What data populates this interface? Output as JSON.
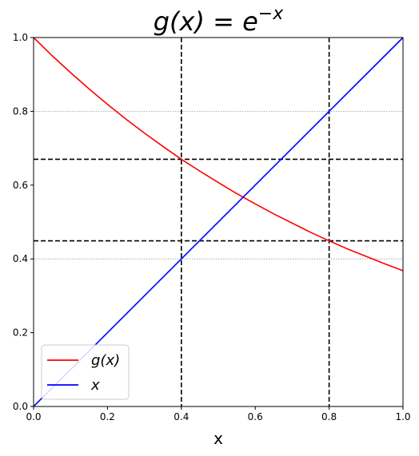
{
  "chart_data": {
    "type": "line",
    "title": {
      "base": "g(x) = e",
      "sup": "−x"
    },
    "xlabel": "x",
    "ylabel": "",
    "xlim": [
      0,
      1
    ],
    "ylim": [
      0,
      1
    ],
    "xticks": [
      0.0,
      0.2,
      0.4,
      0.6,
      0.8,
      1.0
    ],
    "yticks": [
      0.0,
      0.2,
      0.4,
      0.6,
      0.8,
      1.0
    ],
    "xtick_labels": [
      "0.0",
      "0.2",
      "0.4",
      "0.6",
      "0.8",
      "1.0"
    ],
    "ytick_labels": [
      "0.0",
      "0.2",
      "0.4",
      "0.6",
      "0.8",
      "1.0"
    ],
    "series": [
      {
        "name": "g(x)",
        "color": "#ff0000",
        "x": [
          0,
          0.05,
          0.1,
          0.15,
          0.2,
          0.25,
          0.3,
          0.35,
          0.4,
          0.45,
          0.5,
          0.55,
          0.6,
          0.65,
          0.7,
          0.75,
          0.8,
          0.85,
          0.9,
          0.95,
          1.0
        ],
        "y": [
          1.0,
          0.951,
          0.905,
          0.861,
          0.819,
          0.779,
          0.741,
          0.705,
          0.67,
          0.638,
          0.607,
          0.577,
          0.549,
          0.522,
          0.497,
          0.472,
          0.449,
          0.427,
          0.407,
          0.387,
          0.368
        ]
      },
      {
        "name": "x",
        "color": "#0000ff",
        "x": [
          0,
          1
        ],
        "y": [
          0,
          1
        ]
      }
    ],
    "dashed_vlines": [
      0.4,
      0.8
    ],
    "dashed_hlines": [
      0.67,
      0.449
    ],
    "dotted_hgrid": [
      0.4,
      0.8
    ],
    "legend": {
      "placement": "lower-left",
      "entries": [
        {
          "label_base": "g(x)",
          "color": "#ff0000"
        },
        {
          "label_base": "x",
          "color": "#0000ff"
        }
      ]
    }
  }
}
